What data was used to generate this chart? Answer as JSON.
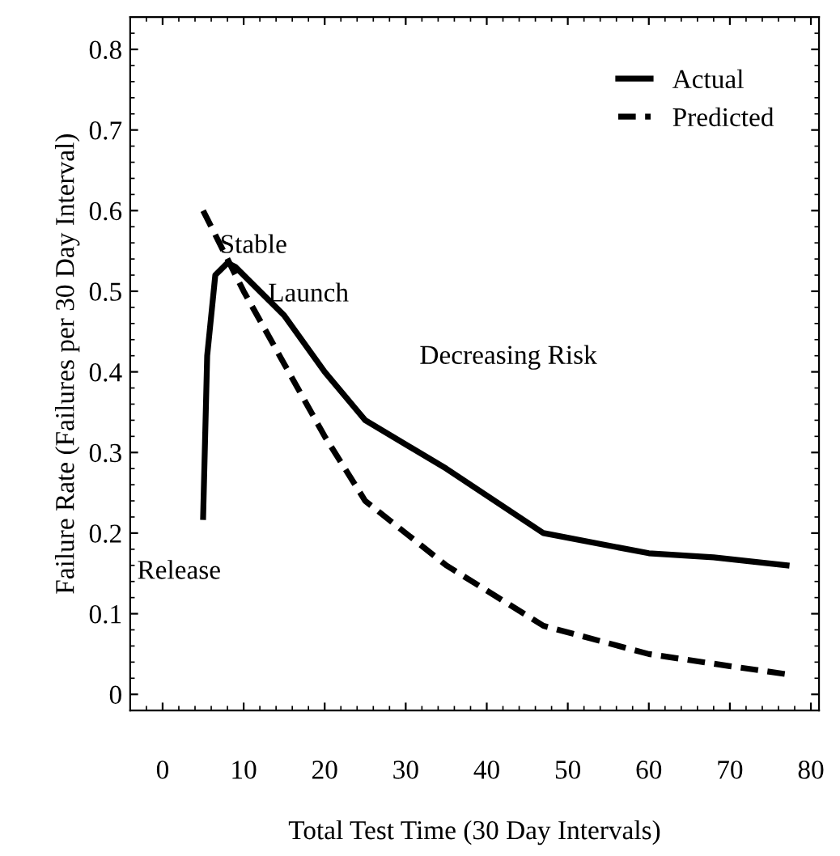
{
  "chart_data": {
    "type": "line",
    "xlabel": "Total Test Time (30 Day Intervals)",
    "ylabel": "Failure Rate (Failures per 30 Day Interval)",
    "xlim": [
      -4,
      81
    ],
    "ylim": [
      -0.02,
      0.84
    ],
    "xticks": [
      0,
      10,
      20,
      30,
      40,
      50,
      60,
      70,
      80
    ],
    "yticks": [
      {
        "value": 0,
        "label": "0"
      },
      0.1,
      0.2,
      0.3,
      0.4,
      0.5,
      0.6,
      0.7,
      0.8
    ],
    "grid": false,
    "legend": "top right",
    "marker": "none",
    "series": [
      {
        "name": "Actual",
        "color": "#000000",
        "line_style": "solid",
        "x": [
          5,
          5.5,
          6.5,
          8,
          9,
          15,
          20,
          25,
          35,
          47,
          60,
          68,
          77
        ],
        "values": [
          0.22,
          0.42,
          0.52,
          0.535,
          0.53,
          0.47,
          0.4,
          0.34,
          0.28,
          0.2,
          0.175,
          0.17,
          0.16
        ]
      },
      {
        "name": "Predicted",
        "color": "#000000",
        "line_style": "dashed",
        "x": [
          5,
          10,
          15,
          20,
          25,
          35,
          47,
          60,
          70,
          77
        ],
        "values": [
          0.6,
          0.5,
          0.41,
          0.32,
          0.24,
          0.16,
          0.085,
          0.05,
          0.035,
          0.025
        ]
      }
    ],
    "annotations": [
      "Stable",
      "Launch",
      "Decreasing Risk",
      "Release"
    ]
  }
}
